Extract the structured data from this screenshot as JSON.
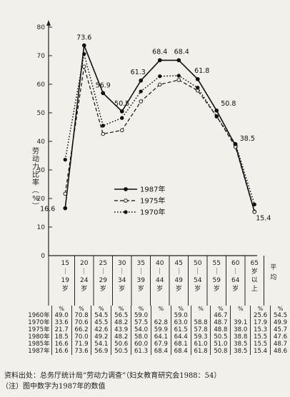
{
  "chart_data": {
    "type": "line",
    "title": "",
    "xlabel": "",
    "ylabel": "劳动力比率（%）",
    "ylim": [
      0,
      80
    ],
    "yticks": [
      0,
      10,
      20,
      30,
      40,
      50,
      60,
      70,
      80
    ],
    "categories": [
      [
        "15",
        "｜",
        "19",
        "岁"
      ],
      [
        "20",
        "｜",
        "24",
        "岁"
      ],
      [
        "25",
        "｜",
        "29",
        "岁"
      ],
      [
        "30",
        "｜",
        "34",
        "岁"
      ],
      [
        "35",
        "｜",
        "39",
        "岁"
      ],
      [
        "40",
        "｜",
        "44",
        "岁"
      ],
      [
        "45",
        "｜",
        "49",
        "岁"
      ],
      [
        "50",
        "｜",
        "54",
        "岁"
      ],
      [
        "55",
        "｜",
        "59",
        "岁"
      ],
      [
        "60",
        "｜",
        "64",
        "岁"
      ],
      [
        "65",
        "岁",
        "以",
        "上"
      ]
    ],
    "grid": false,
    "legend_position": "center-left",
    "series": [
      {
        "name": "1987年",
        "style": "solid-filled",
        "values": [
          16.6,
          73.6,
          56.9,
          50.5,
          61.3,
          68.4,
          68.4,
          61.8,
          50.8,
          38.5,
          15.4
        ],
        "labels": [
          "16.6",
          "73.6",
          "56.9",
          "50.5",
          "61.3",
          "68.4",
          "68.4",
          "61.8",
          "50.8",
          "38.5",
          "15.4"
        ]
      },
      {
        "name": "1975年",
        "style": "dashed-open",
        "values": [
          21.7,
          66.2,
          42.6,
          43.9,
          54.0,
          59.9,
          61.5,
          57.8,
          48.8,
          38.0,
          15.3
        ]
      },
      {
        "name": "1970年",
        "style": "dotted-filled",
        "values": [
          33.6,
          70.6,
          45.5,
          48.2,
          57.5,
          62.8,
          63.0,
          58.8,
          48.7,
          39.1,
          17.9
        ]
      }
    ]
  },
  "table": {
    "average_header": [
      "平",
      "均"
    ],
    "pct_symbol": "%",
    "rows": [
      {
        "year": "1960年",
        "values": [
          "49.0",
          "70.8",
          "54.5",
          "56.5",
          "59.0",
          "",
          "59.0",
          "",
          "46.7",
          "",
          "25.6",
          "54.5"
        ]
      },
      {
        "year": "1970年",
        "values": [
          "33.6",
          "70.6",
          "45.5",
          "48.2",
          "57.5",
          "62.8",
          "63.0",
          "58.8",
          "48.7",
          "39.1",
          "17.9",
          "49.9"
        ]
      },
      {
        "year": "1975年",
        "values": [
          "21.7",
          "66.2",
          "42.6",
          "43.9",
          "54.0",
          "59.9",
          "61.5",
          "57.8",
          "48.8",
          "38.0",
          "15.3",
          "45.7"
        ]
      },
      {
        "year": "1980年",
        "values": [
          "18.5",
          "70.0",
          "49.2",
          "48.2",
          "58.0",
          "64.1",
          "64.4",
          "59.3",
          "50.5",
          "38.8",
          "15.5",
          "47.6"
        ]
      },
      {
        "year": "1985年",
        "values": [
          "16.6",
          "71.9",
          "54.1",
          "50.6",
          "60.0",
          "67.9",
          "68.1",
          "61.0",
          "51.0",
          "38.5",
          "15.5",
          "48.7"
        ]
      },
      {
        "year": "1987年",
        "values": [
          "16.6",
          "73.6",
          "56.9",
          "50.5",
          "61.3",
          "68.4",
          "68.4",
          "61.8",
          "50.8",
          "38.5",
          "15.4",
          "48.6"
        ]
      }
    ]
  },
  "notes": {
    "source": "资料出处：总务厅统计局“劳动力调查”（妇女教育研究会1988：54）",
    "note": "（注）图中数字为1987年的数值"
  }
}
